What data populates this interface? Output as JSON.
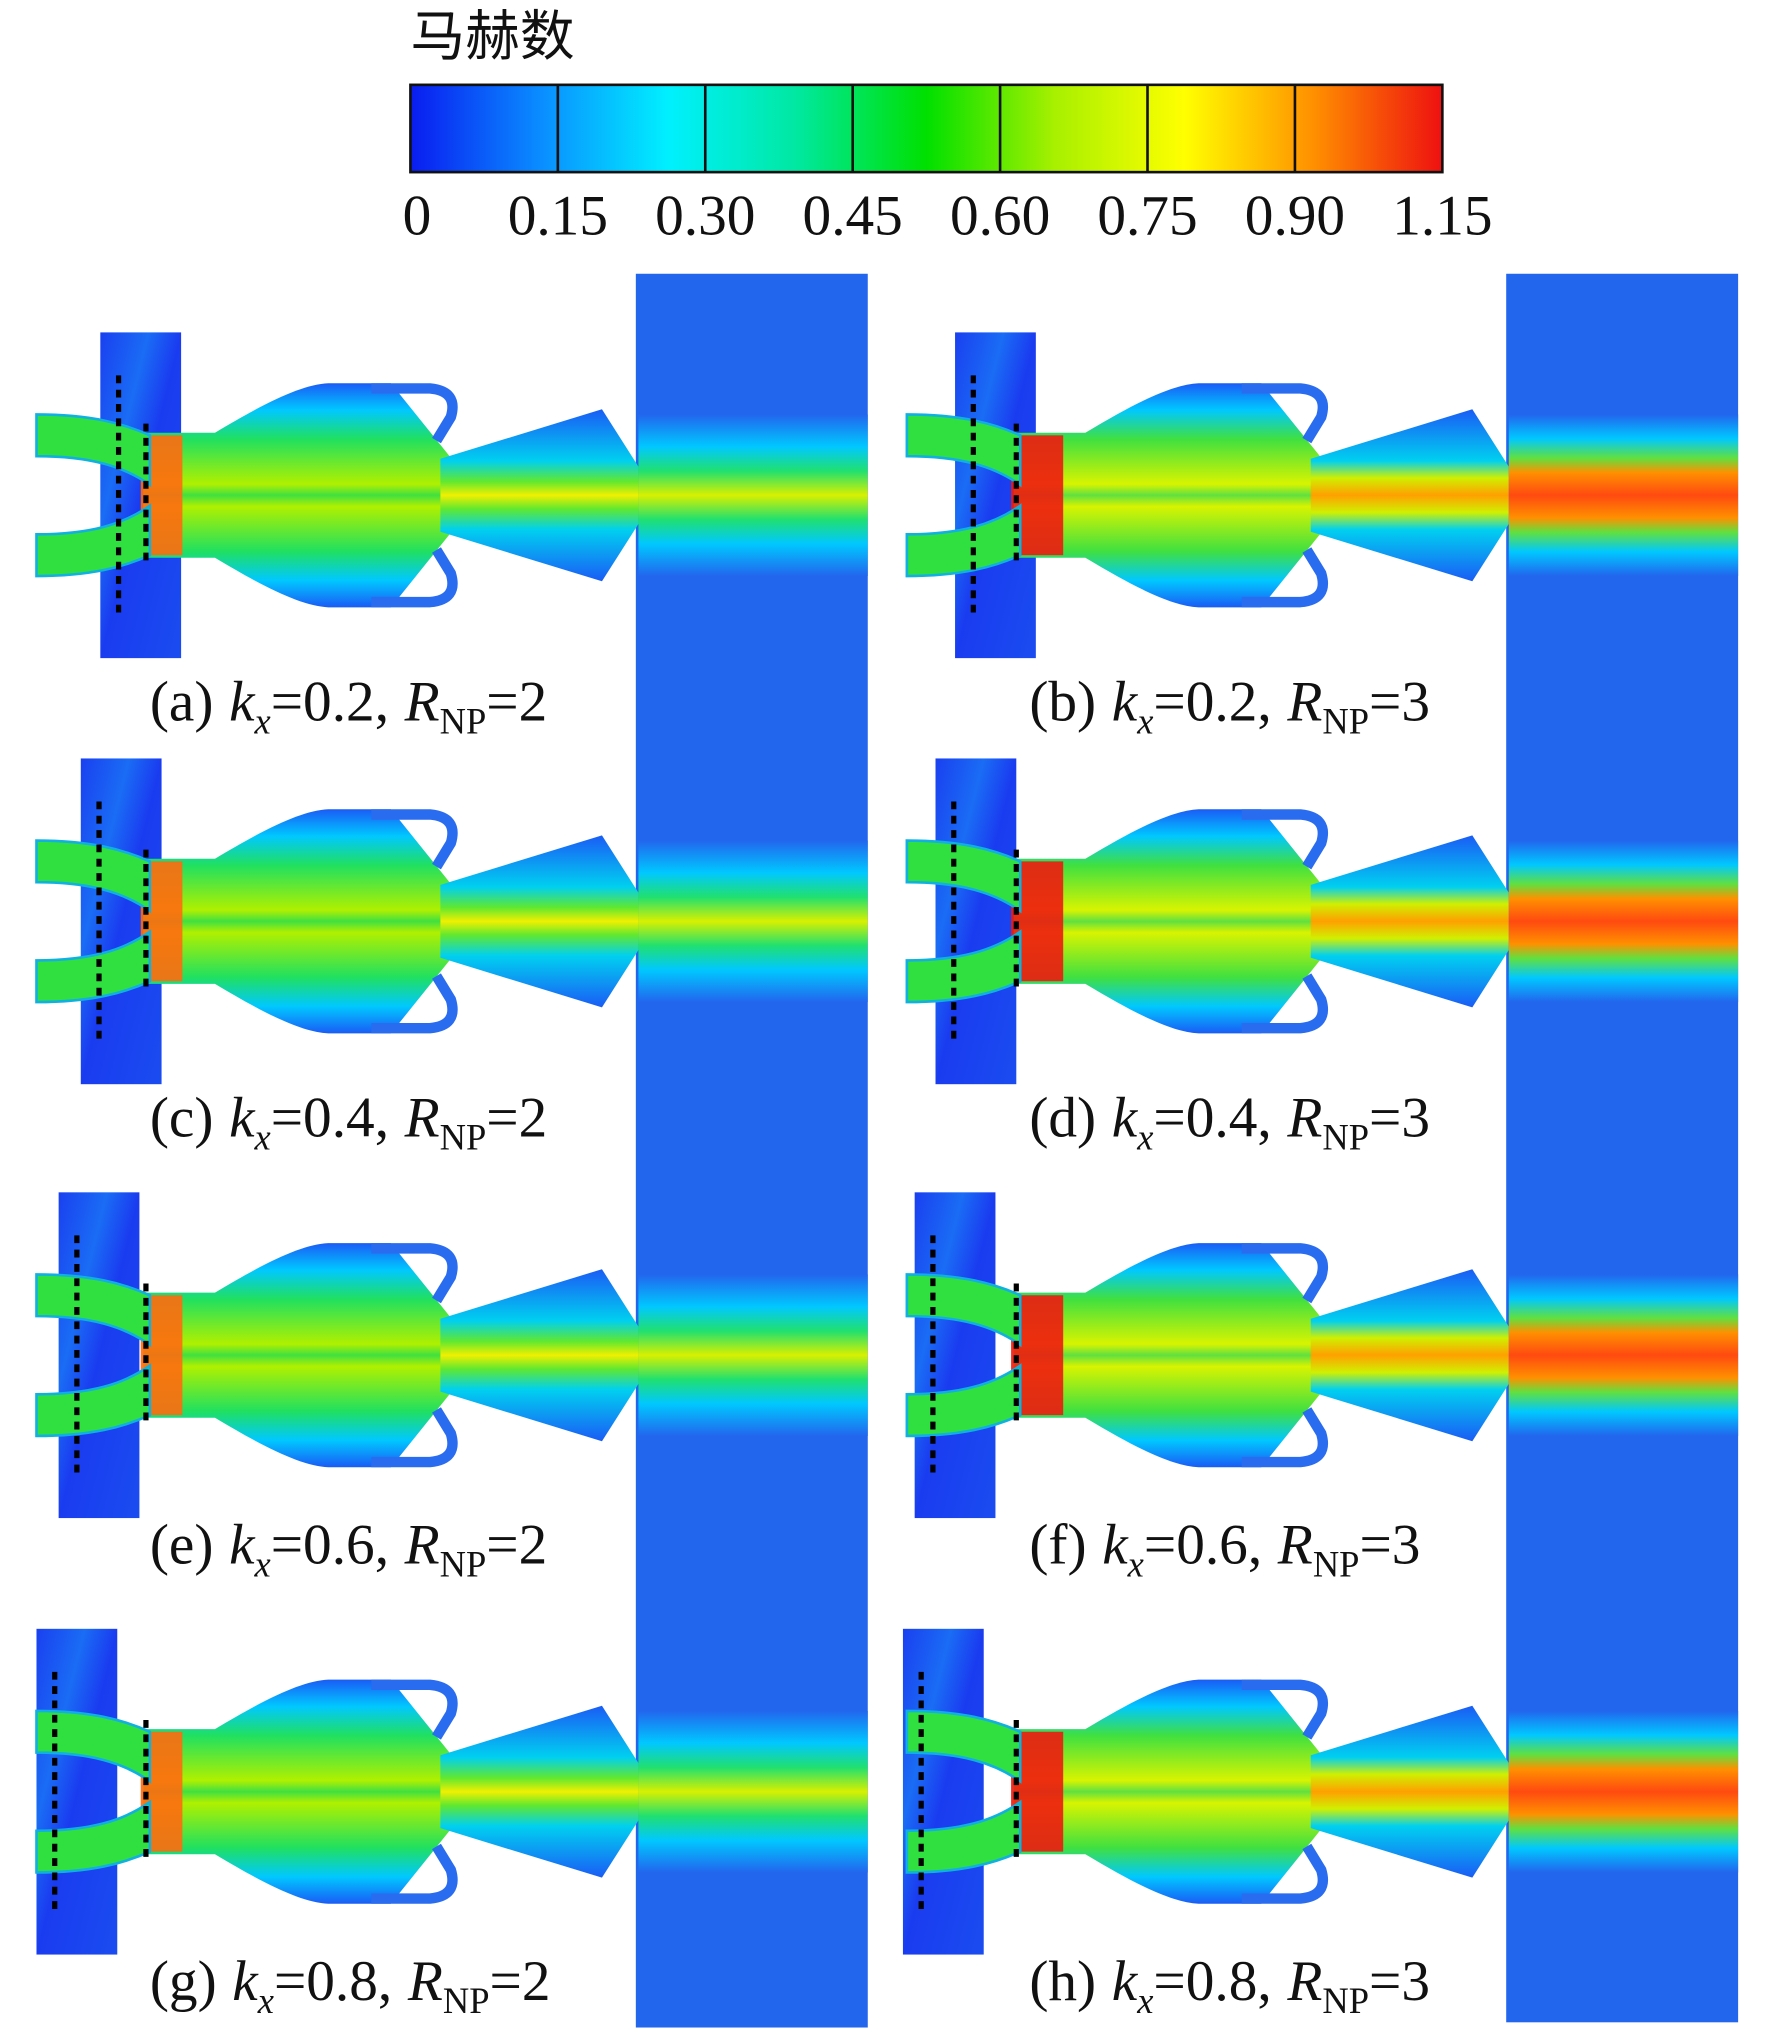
{
  "colorbar": {
    "title": "马赫数",
    "ticks": [
      0,
      0.15,
      {
        "value": 0.3,
        "label": "0.30"
      },
      0.45,
      {
        "value": 0.6,
        "label": "0.60"
      },
      0.75,
      {
        "value": 0.9,
        "label": "0.90"
      },
      1.15
    ],
    "colors": [
      "#0a1cf0",
      "#0a8cff",
      "#00f0ff",
      "#00e8a0",
      "#00e000",
      "#a8f000",
      "#ffff00",
      "#ff9000",
      "#ee1010"
    ]
  },
  "caption_symbols": {
    "k": "k",
    "k_sub": "x",
    "equals": "=",
    "separator": ",",
    "R": "R",
    "R_sub": "NP"
  },
  "panels": [
    {
      "label": "(a)",
      "kx": 0.2,
      "rnp": 2
    },
    {
      "label": "(b)",
      "kx": 0.2,
      "rnp": 3
    },
    {
      "label": "(c)",
      "kx": 0.4,
      "rnp": 2
    },
    {
      "label": "(d)",
      "kx": 0.4,
      "rnp": 3
    },
    {
      "label": "(e)",
      "kx": 0.6,
      "rnp": 2
    },
    {
      "label": "(f)",
      "kx": 0.6,
      "rnp": 3
    },
    {
      "label": "(g)",
      "kx": 0.8,
      "rnp": 2
    },
    {
      "label": "(h)",
      "kx": 0.8,
      "rnp": 3
    }
  ]
}
